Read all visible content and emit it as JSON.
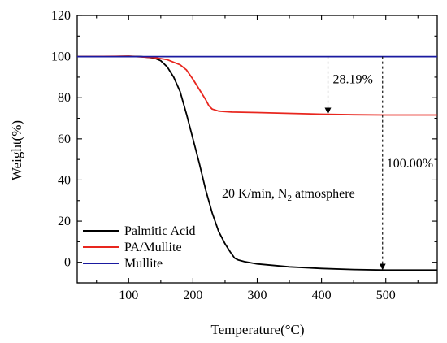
{
  "chart_data": {
    "type": "line",
    "xlabel": "Temperature(°C)",
    "ylabel": "Weight(%)",
    "xlim": [
      20,
      580
    ],
    "ylim": [
      -10,
      120
    ],
    "x_ticks": [
      100,
      200,
      300,
      400,
      500
    ],
    "y_ticks": [
      0,
      20,
      40,
      60,
      80,
      100,
      120
    ],
    "grid": false,
    "legend_position": "bottom-left",
    "series": [
      {
        "name": "Palmitic Acid",
        "color": "#000000",
        "points": [
          [
            20,
            100
          ],
          [
            60,
            100
          ],
          [
            100,
            100.2
          ],
          [
            120,
            100
          ],
          [
            140,
            99.3
          ],
          [
            150,
            98
          ],
          [
            160,
            95
          ],
          [
            170,
            90
          ],
          [
            180,
            83
          ],
          [
            190,
            72
          ],
          [
            200,
            60
          ],
          [
            210,
            48
          ],
          [
            220,
            35
          ],
          [
            230,
            24
          ],
          [
            240,
            15
          ],
          [
            250,
            9
          ],
          [
            258,
            5
          ],
          [
            265,
            2
          ],
          [
            270,
            1.2
          ],
          [
            280,
            0.3
          ],
          [
            300,
            -0.8
          ],
          [
            350,
            -2.2
          ],
          [
            400,
            -3
          ],
          [
            450,
            -3.5
          ],
          [
            500,
            -3.8
          ],
          [
            580,
            -3.8
          ]
        ]
      },
      {
        "name": "PA/Mullite",
        "color": "#e8261e",
        "points": [
          [
            20,
            100
          ],
          [
            100,
            100.2
          ],
          [
            140,
            99.5
          ],
          [
            160,
            98.5
          ],
          [
            180,
            96
          ],
          [
            190,
            93.5
          ],
          [
            200,
            89
          ],
          [
            210,
            84
          ],
          [
            220,
            79
          ],
          [
            225,
            76
          ],
          [
            230,
            74.5
          ],
          [
            240,
            73.5
          ],
          [
            260,
            73
          ],
          [
            300,
            72.8
          ],
          [
            350,
            72.4
          ],
          [
            400,
            72
          ],
          [
            450,
            71.7
          ],
          [
            500,
            71.6
          ],
          [
            580,
            71.6
          ]
        ]
      },
      {
        "name": "Mullite",
        "color": "#1a1aa0",
        "points": [
          [
            20,
            100
          ],
          [
            580,
            100
          ]
        ]
      }
    ],
    "annotations": [
      {
        "text": "28.19%",
        "x": 410,
        "y_from": 100,
        "y_to": 72
      },
      {
        "text": "100.00%",
        "x": 495,
        "y_from": 100,
        "y_to": -3.8
      },
      {
        "text_main": "20 K/min, N",
        "subscript": "2",
        "text_after": " atmosphere"
      }
    ]
  }
}
